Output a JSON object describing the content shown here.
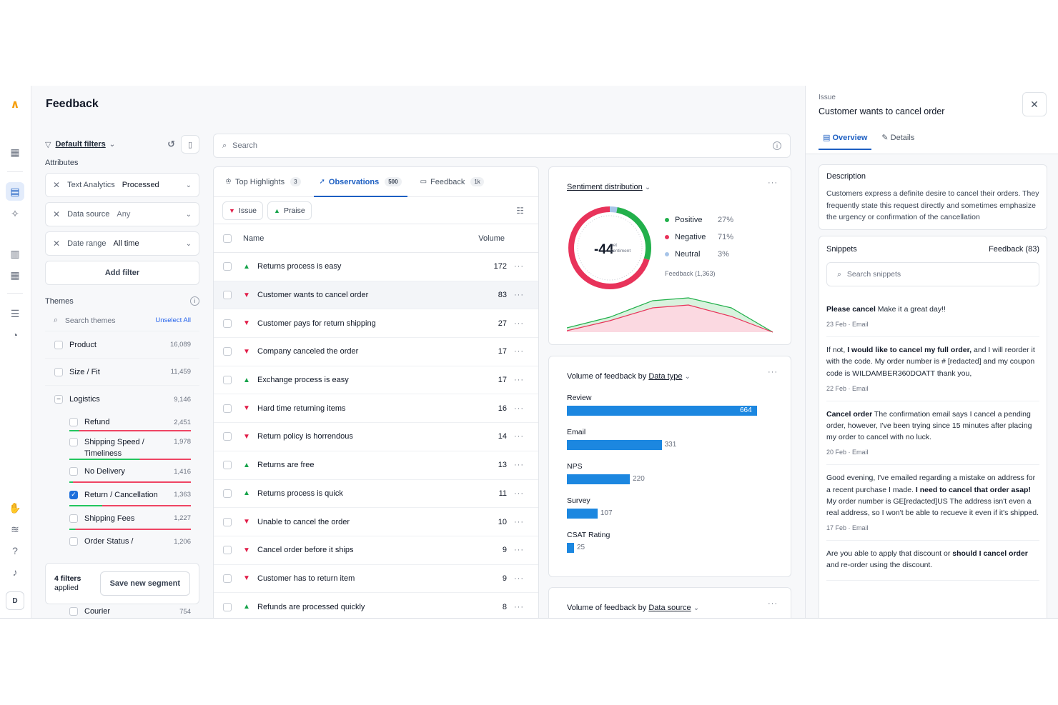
{
  "page": {
    "title": "Feedback"
  },
  "rail": {
    "bottom_avatar": "D"
  },
  "filters": {
    "default_label": "Default filters",
    "attributes_label": "Attributes",
    "rows": [
      {
        "key": "Text Analytics",
        "value": "Processed"
      },
      {
        "key": "Data source",
        "value": "Any"
      },
      {
        "key": "Date range",
        "value": "All time"
      }
    ],
    "add_filter": "Add filter",
    "themes_label": "Themes",
    "search_placeholder": "Search themes",
    "unselect_all": "Unselect All",
    "themes": [
      {
        "label": "Product",
        "count": "16,089"
      },
      {
        "label": "Size / Fit",
        "count": "11,459"
      },
      {
        "label": "Logistics",
        "count": "9,146"
      },
      {
        "label": "Refund",
        "count": "2,451"
      },
      {
        "label": "Shipping Speed /",
        "label2": "Timeliness",
        "count": "1,978"
      },
      {
        "label": "No Delivery",
        "count": "1,416"
      },
      {
        "label": "Return / Cancellation",
        "count": "1,363"
      },
      {
        "label": "Shipping Fees",
        "count": "1,227"
      },
      {
        "label": "Order Status /",
        "count": "1,206"
      },
      {
        "label": "Courier",
        "count": "754"
      }
    ],
    "filters_applied_count": "4 filters",
    "filters_applied_suffix": "applied",
    "save_segment": "Save new segment"
  },
  "search": {
    "placeholder": "Search"
  },
  "observations": {
    "tabs": [
      {
        "label": "Top Highlights",
        "badge": "3"
      },
      {
        "label": "Observations",
        "badge": "500"
      },
      {
        "label": "Feedback",
        "badge": "1k"
      }
    ],
    "chips": [
      "Issue",
      "Praise"
    ],
    "col_name": "Name",
    "col_volume": "Volume",
    "rows": [
      {
        "label": "Returns process is easy",
        "volume": "172",
        "kind": "praise"
      },
      {
        "label": "Customer wants to cancel order",
        "volume": "83",
        "kind": "issue"
      },
      {
        "label": "Customer pays for return shipping",
        "volume": "27",
        "kind": "issue"
      },
      {
        "label": "Company canceled the order",
        "volume": "17",
        "kind": "issue"
      },
      {
        "label": "Exchange process is easy",
        "volume": "17",
        "kind": "praise"
      },
      {
        "label": "Hard time returning items",
        "volume": "16",
        "kind": "issue"
      },
      {
        "label": "Return policy is horrendous",
        "volume": "14",
        "kind": "issue"
      },
      {
        "label": "Returns are free",
        "volume": "13",
        "kind": "praise"
      },
      {
        "label": "Returns process is quick",
        "volume": "11",
        "kind": "praise"
      },
      {
        "label": "Unable to cancel the order",
        "volume": "10",
        "kind": "issue"
      },
      {
        "label": "Cancel order before it ships",
        "volume": "9",
        "kind": "issue"
      },
      {
        "label": "Customer has to return item",
        "volume": "9",
        "kind": "issue"
      },
      {
        "label": "Refunds are processed quickly",
        "volume": "8",
        "kind": "praise"
      }
    ]
  },
  "sentiment": {
    "title": "Sentiment distribution",
    "score": "-44",
    "score_label_1": "net",
    "score_label_2": "sentiment",
    "legend": [
      {
        "name": "Positive",
        "pct": "27%",
        "color": "#22b04b"
      },
      {
        "name": "Negative",
        "pct": "71%",
        "color": "#e8335a"
      },
      {
        "name": "Neutral",
        "pct": "3%",
        "color": "#a7c4e8"
      }
    ],
    "feedback_count": "Feedback (1,363)"
  },
  "volume_type": {
    "title_prefix": "Volume of feedback by",
    "title_link": "Data type",
    "bars": [
      {
        "label": "Review",
        "value": 664
      },
      {
        "label": "Email",
        "value": 331
      },
      {
        "label": "NPS",
        "value": 220
      },
      {
        "label": "Survey",
        "value": 107
      },
      {
        "label": "CSAT Rating",
        "value": 25
      }
    ]
  },
  "volume_source": {
    "title_prefix": "Volume of feedback by",
    "title_link": "Data source"
  },
  "detail": {
    "kind": "Issue",
    "title": "Customer wants to cancel order",
    "tabs": [
      "Overview",
      "Details"
    ],
    "description_label": "Description",
    "description": "Customers express a definite desire to cancel their orders. They frequently state this request directly and sometimes emphasize the urgency or confirmation of the cancellation",
    "snippets_label": "Snippets",
    "snippets_count": "Feedback (83)",
    "snippets_search": "Search snippets",
    "snippets": [
      {
        "parts": [
          {
            "b": "Please cancel"
          },
          {
            "t": " Make it a great day!!"
          }
        ],
        "date": "23 Feb",
        "source": "Email"
      },
      {
        "parts": [
          {
            "t": "If not, "
          },
          {
            "b": "I would like to cancel my full order,"
          },
          {
            "t": " and I will reorder it with the code. My order number is # [redacted] and my coupon code is WILDAMBER360DOATT thank you,"
          }
        ],
        "date": "22 Feb",
        "source": "Email"
      },
      {
        "parts": [
          {
            "b": "Cancel order"
          },
          {
            "t": " The confirmation email says I cancel a pending order, however, I've been trying since 15 minutes after placing my order to cancel with no luck."
          }
        ],
        "date": "20 Feb",
        "source": "Email"
      },
      {
        "parts": [
          {
            "t": "Good evening, I've emailed regarding a mistake on address for a recent purchase I made. "
          },
          {
            "b": "I need to cancel that order asap!"
          },
          {
            "t": " My order number is GE[redacted]US The address isn't even a real address, so I won't be able to recueve it even if it's shipped."
          }
        ],
        "date": "17 Feb",
        "source": "Email"
      },
      {
        "parts": [
          {
            "t": "Are you able to apply that discount or "
          },
          {
            "b": "should I cancel order"
          },
          {
            "t": " and re-order using the discount."
          }
        ],
        "date": "",
        "source": ""
      }
    ]
  }
}
